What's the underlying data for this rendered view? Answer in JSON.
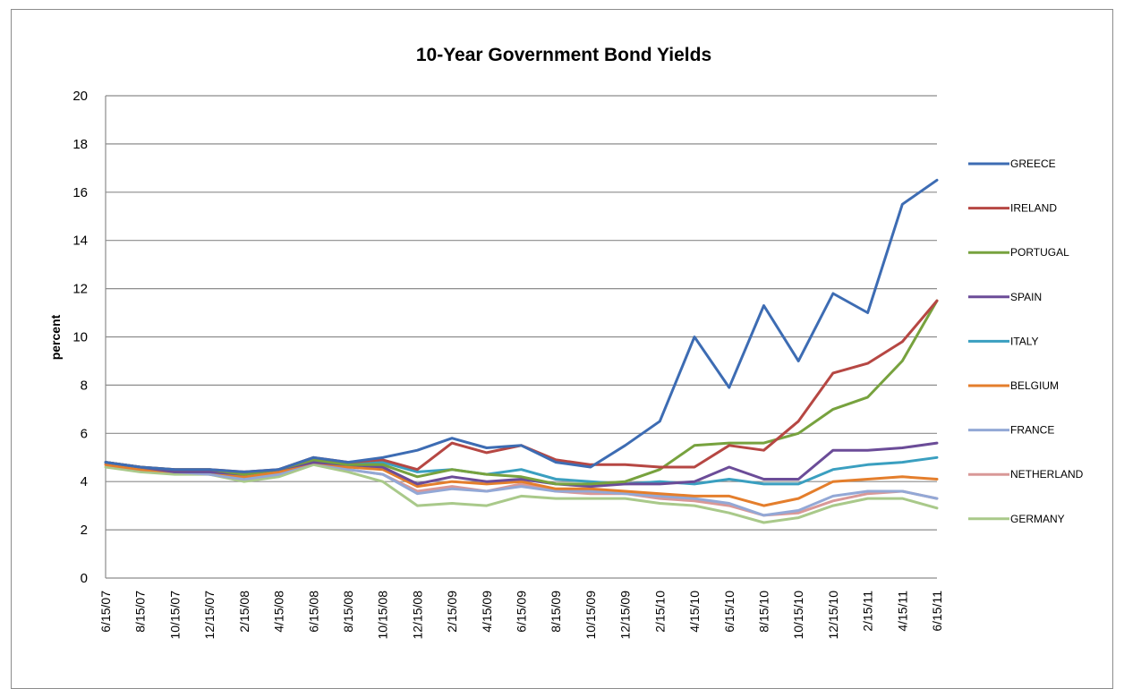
{
  "chart_data": {
    "type": "line",
    "title": "10-Year Government Bond Yields",
    "ylabel": "percent",
    "xlabel": "",
    "ylim": [
      0,
      20
    ],
    "yticks": [
      0,
      2,
      4,
      6,
      8,
      10,
      12,
      14,
      16,
      18,
      20
    ],
    "grid": "horizontal",
    "legend_position": "right",
    "x": [
      "6/15/07",
      "8/15/07",
      "10/15/07",
      "12/15/07",
      "2/15/08",
      "4/15/08",
      "6/15/08",
      "8/15/08",
      "10/15/08",
      "12/15/08",
      "2/15/09",
      "4/15/09",
      "6/15/09",
      "8/15/09",
      "10/15/09",
      "12/15/09",
      "2/15/10",
      "4/15/10",
      "6/15/10",
      "8/15/10",
      "10/15/10",
      "12/15/10",
      "2/15/11",
      "4/15/11",
      "6/15/11"
    ],
    "series": [
      {
        "name": "GREECE",
        "color": "#3d6cb3",
        "values": [
          4.8,
          4.6,
          4.5,
          4.5,
          4.4,
          4.5,
          5.0,
          4.8,
          5.0,
          5.3,
          5.8,
          5.4,
          5.5,
          4.8,
          4.6,
          5.5,
          6.5,
          10.0,
          7.9,
          11.3,
          9.0,
          11.8,
          11.0,
          15.5,
          16.5
        ]
      },
      {
        "name": "IRELAND",
        "color": "#b64743",
        "values": [
          4.8,
          4.6,
          4.5,
          4.5,
          4.4,
          4.5,
          5.0,
          4.8,
          4.9,
          4.5,
          5.6,
          5.2,
          5.5,
          4.9,
          4.7,
          4.7,
          4.6,
          4.6,
          5.5,
          5.3,
          6.5,
          8.5,
          8.9,
          9.8,
          11.5
        ]
      },
      {
        "name": "PORTUGAL",
        "color": "#77a23e",
        "values": [
          4.8,
          4.6,
          4.5,
          4.5,
          4.3,
          4.5,
          4.9,
          4.7,
          4.7,
          4.2,
          4.5,
          4.3,
          4.2,
          3.9,
          3.9,
          4.0,
          4.5,
          5.5,
          5.6,
          5.6,
          6.0,
          7.0,
          7.5,
          9.0,
          11.5
        ]
      },
      {
        "name": "SPAIN",
        "color": "#6b4c98",
        "values": [
          4.8,
          4.6,
          4.4,
          4.4,
          4.3,
          4.5,
          4.8,
          4.7,
          4.6,
          3.9,
          4.2,
          4.0,
          4.1,
          3.9,
          3.8,
          3.9,
          3.9,
          4.0,
          4.6,
          4.1,
          4.1,
          5.3,
          5.3,
          5.4,
          5.6
        ]
      },
      {
        "name": "ITALY",
        "color": "#3a9fc0",
        "values": [
          4.8,
          4.6,
          4.4,
          4.4,
          4.3,
          4.5,
          4.9,
          4.7,
          4.8,
          4.4,
          4.5,
          4.3,
          4.5,
          4.1,
          4.0,
          3.9,
          4.0,
          3.9,
          4.1,
          3.9,
          3.9,
          4.5,
          4.7,
          4.8,
          5.0
        ]
      },
      {
        "name": "BELGIUM",
        "color": "#e47e2c",
        "values": [
          4.7,
          4.5,
          4.4,
          4.4,
          4.2,
          4.4,
          4.8,
          4.6,
          4.5,
          3.8,
          4.0,
          3.9,
          4.0,
          3.7,
          3.7,
          3.6,
          3.5,
          3.4,
          3.4,
          3.0,
          3.3,
          4.0,
          4.1,
          4.2,
          4.1
        ]
      },
      {
        "name": "FRANCE",
        "color": "#93a8d6",
        "values": [
          4.7,
          4.5,
          4.4,
          4.3,
          4.1,
          4.3,
          4.8,
          4.5,
          4.3,
          3.5,
          3.7,
          3.6,
          3.8,
          3.6,
          3.6,
          3.5,
          3.4,
          3.3,
          3.1,
          2.6,
          2.8,
          3.4,
          3.6,
          3.6,
          3.3
        ]
      },
      {
        "name": "NETHERLAND",
        "color": "#d99897",
        "values": [
          4.7,
          4.5,
          4.4,
          4.3,
          4.1,
          4.3,
          4.8,
          4.5,
          4.3,
          3.6,
          3.8,
          3.6,
          3.9,
          3.6,
          3.5,
          3.5,
          3.3,
          3.2,
          3.0,
          2.6,
          2.7,
          3.2,
          3.5,
          3.6,
          3.3
        ]
      },
      {
        "name": "GERMANY",
        "color": "#a9c98a",
        "values": [
          4.6,
          4.4,
          4.3,
          4.3,
          4.0,
          4.2,
          4.7,
          4.4,
          4.0,
          3.0,
          3.1,
          3.0,
          3.4,
          3.3,
          3.3,
          3.3,
          3.1,
          3.0,
          2.7,
          2.3,
          2.5,
          3.0,
          3.3,
          3.3,
          2.9
        ]
      }
    ]
  }
}
